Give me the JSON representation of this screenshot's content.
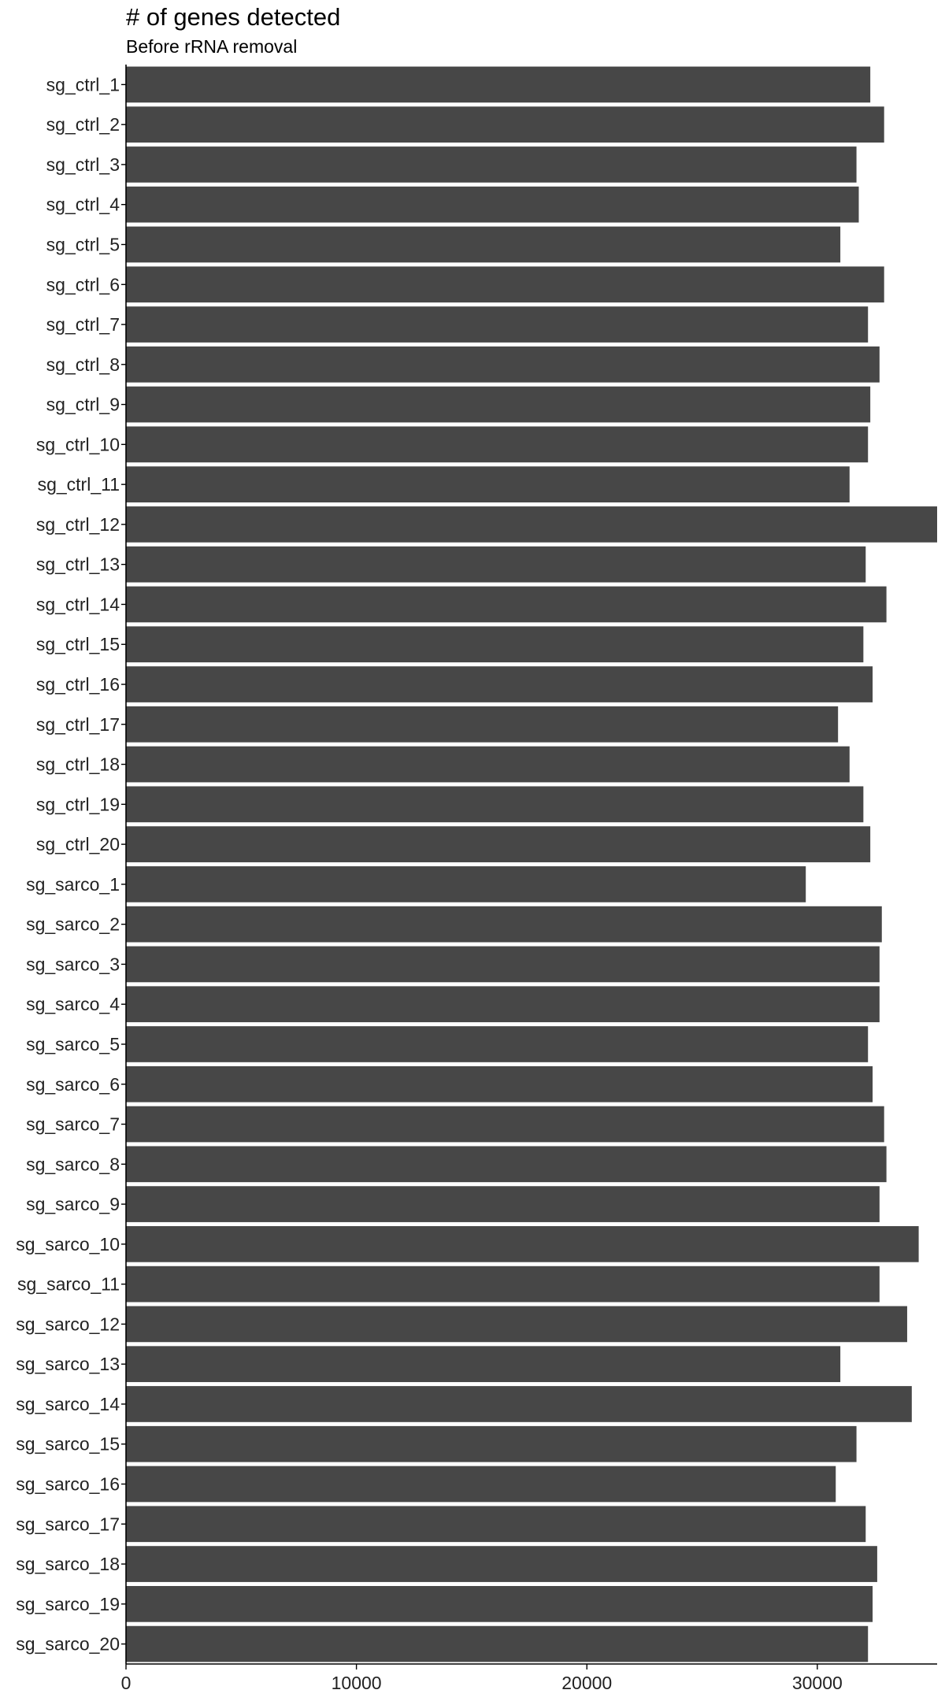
{
  "chart_data": {
    "type": "bar",
    "orientation": "horizontal",
    "title": "# of genes detected",
    "subtitle": "Before rRNA removal",
    "xlabel": "",
    "ylabel": "",
    "xlim": [
      0,
      35200
    ],
    "xticks": [
      0,
      10000,
      20000,
      30000
    ],
    "grid": false,
    "bar_color": "#474747",
    "categories": [
      "sg_ctrl_1",
      "sg_ctrl_2",
      "sg_ctrl_3",
      "sg_ctrl_4",
      "sg_ctrl_5",
      "sg_ctrl_6",
      "sg_ctrl_7",
      "sg_ctrl_8",
      "sg_ctrl_9",
      "sg_ctrl_10",
      "sg_ctrl_11",
      "sg_ctrl_12",
      "sg_ctrl_13",
      "sg_ctrl_14",
      "sg_ctrl_15",
      "sg_ctrl_16",
      "sg_ctrl_17",
      "sg_ctrl_18",
      "sg_ctrl_19",
      "sg_ctrl_20",
      "sg_sarco_1",
      "sg_sarco_2",
      "sg_sarco_3",
      "sg_sarco_4",
      "sg_sarco_5",
      "sg_sarco_6",
      "sg_sarco_7",
      "sg_sarco_8",
      "sg_sarco_9",
      "sg_sarco_10",
      "sg_sarco_11",
      "sg_sarco_12",
      "sg_sarco_13",
      "sg_sarco_14",
      "sg_sarco_15",
      "sg_sarco_16",
      "sg_sarco_17",
      "sg_sarco_18",
      "sg_sarco_19",
      "sg_sarco_20"
    ],
    "values": [
      32300,
      32900,
      31700,
      31800,
      31000,
      32900,
      32200,
      32700,
      32300,
      32200,
      31400,
      35200,
      32100,
      33000,
      32000,
      32400,
      30900,
      31400,
      32000,
      32300,
      29500,
      32800,
      32700,
      32700,
      32200,
      32400,
      32900,
      33000,
      32700,
      34400,
      32700,
      33900,
      31000,
      34100,
      31700,
      30800,
      32100,
      32600,
      32400,
      32200
    ]
  }
}
